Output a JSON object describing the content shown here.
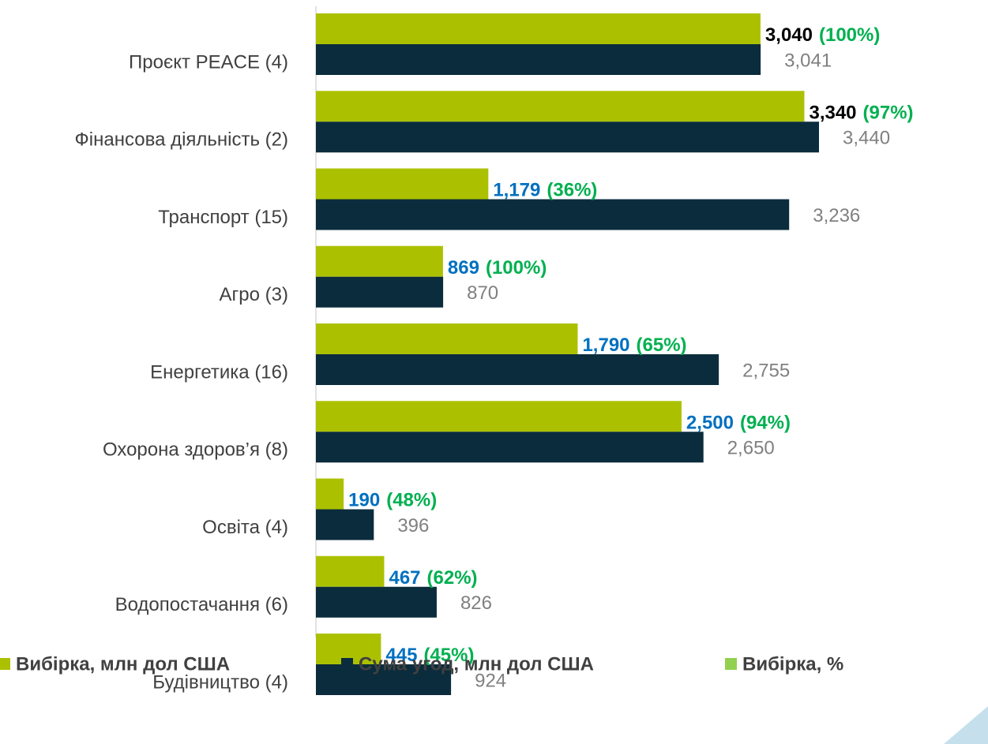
{
  "chart_data": {
    "type": "bar",
    "orientation": "horizontal",
    "categories": [
      "Проєкт PEACE  (4)",
      "Фінансова діяльність (2)",
      "Транспорт (15)",
      "Агро (3)",
      "Енергетика (16)",
      "Охорона здоров’я  (8)",
      "Освіта (4)",
      "Водопостачання (6)",
      "Будівництво (4)"
    ],
    "series": [
      {
        "name": "Вибірка, млн дол США",
        "color": "#abc100",
        "values": [
          3040,
          3340,
          1179,
          869,
          1790,
          2500,
          190,
          467,
          445
        ],
        "value_labels": [
          "3,040",
          "3,340",
          "1,179",
          "869",
          "1,790",
          "2,500",
          "190",
          "467",
          "445"
        ],
        "label_colors": [
          "#000000",
          "#000000",
          "#0070c0",
          "#0070c0",
          "#0070c0",
          "#0070c0",
          "#0070c0",
          "#0070c0",
          "#0070c0"
        ]
      },
      {
        "name": "Сума угод, млн дол США",
        "color": "#0b2c3c",
        "values": [
          3041,
          3440,
          3236,
          870,
          2755,
          2650,
          396,
          826,
          924
        ],
        "value_labels": [
          "3,041",
          "3,440",
          "3,236",
          "870",
          "2,755",
          "2,650",
          "396",
          "826",
          "924"
        ]
      },
      {
        "name": "Вибірка, %",
        "color": "#92d050",
        "values": [
          100,
          97,
          36,
          100,
          65,
          94,
          48,
          62,
          45
        ],
        "value_labels": [
          "(100%)",
          "(97%)",
          "(36%)",
          "(100%)",
          "(65%)",
          "(94%)",
          "(48%)",
          "(62%)",
          "(45%)"
        ],
        "label_color": "#00b050"
      }
    ]
  }
}
